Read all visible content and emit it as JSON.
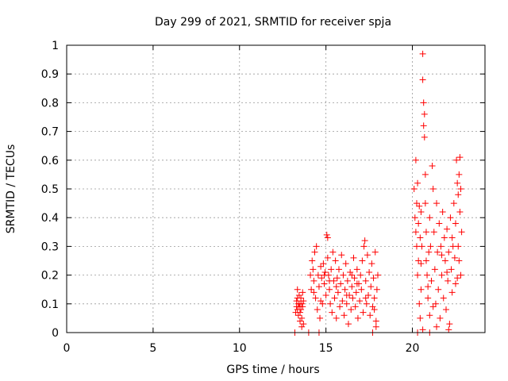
{
  "chart_data": {
    "type": "scatter",
    "title": "Day 299 of 2021, SRMTID for receiver spja",
    "xlabel": "GPS time / hours",
    "ylabel": "SRMTID / TECUs",
    "xlim": [
      0,
      24.2
    ],
    "ylim": [
      0,
      1
    ],
    "xticks": [
      0,
      5,
      10,
      15,
      20
    ],
    "yticks": [
      0,
      0.1,
      0.2,
      0.3,
      0.4,
      0.5,
      0.6,
      0.7,
      0.8,
      0.9,
      1
    ],
    "grid": true,
    "marker": "+",
    "color": "#ff0000",
    "series": [
      {
        "name": "spja",
        "points": [
          [
            13.2,
            0.0
          ],
          [
            14.0,
            0.0
          ],
          [
            14.6,
            0.0
          ],
          [
            13.25,
            0.07
          ],
          [
            13.3,
            0.09
          ],
          [
            13.3,
            0.11
          ],
          [
            13.35,
            0.08
          ],
          [
            13.35,
            0.12
          ],
          [
            13.4,
            0.1
          ],
          [
            13.4,
            0.06
          ],
          [
            13.45,
            0.09
          ],
          [
            13.45,
            0.13
          ],
          [
            13.5,
            0.1
          ],
          [
            13.5,
            0.07
          ],
          [
            13.55,
            0.12
          ],
          [
            13.55,
            0.08
          ],
          [
            13.6,
            0.1
          ],
          [
            13.6,
            0.05
          ],
          [
            13.65,
            0.09
          ],
          [
            13.65,
            0.14
          ],
          [
            13.7,
            0.11
          ],
          [
            13.7,
            0.03
          ],
          [
            13.35,
            0.15
          ],
          [
            13.5,
            0.04
          ],
          [
            13.6,
            0.02
          ],
          [
            14.1,
            0.2
          ],
          [
            14.15,
            0.15
          ],
          [
            14.2,
            0.25
          ],
          [
            14.25,
            0.22
          ],
          [
            14.3,
            0.18
          ],
          [
            14.35,
            0.28
          ],
          [
            14.4,
            0.12
          ],
          [
            14.45,
            0.3
          ],
          [
            14.5,
            0.08
          ],
          [
            14.55,
            0.2
          ],
          [
            14.6,
            0.16
          ],
          [
            14.65,
            0.05
          ],
          [
            14.7,
            0.23
          ],
          [
            14.75,
            0.19
          ],
          [
            14.8,
            0.1
          ],
          [
            14.85,
            0.24
          ],
          [
            14.9,
            0.17
          ],
          [
            14.95,
            0.21
          ],
          [
            15.0,
            0.13
          ],
          [
            15.05,
            0.34
          ],
          [
            15.1,
            0.33
          ],
          [
            15.1,
            0.26
          ],
          [
            15.15,
            0.2
          ],
          [
            15.2,
            0.15
          ],
          [
            15.25,
            0.1
          ],
          [
            15.3,
            0.22
          ],
          [
            15.35,
            0.07
          ],
          [
            15.4,
            0.28
          ],
          [
            15.45,
            0.18
          ],
          [
            15.5,
            0.12
          ],
          [
            15.55,
            0.25
          ],
          [
            15.6,
            0.05
          ],
          [
            15.65,
            0.19
          ],
          [
            15.7,
            0.14
          ],
          [
            15.75,
            0.22
          ],
          [
            15.8,
            0.09
          ],
          [
            15.85,
            0.17
          ],
          [
            15.9,
            0.27
          ],
          [
            15.95,
            0.11
          ],
          [
            16.0,
            0.2
          ],
          [
            16.05,
            0.06
          ],
          [
            16.1,
            0.15
          ],
          [
            16.15,
            0.24
          ],
          [
            16.2,
            0.1
          ],
          [
            16.25,
            0.18
          ],
          [
            16.3,
            0.03
          ],
          [
            16.35,
            0.13
          ],
          [
            16.4,
            0.21
          ],
          [
            16.45,
            0.08
          ],
          [
            16.5,
            0.16
          ],
          [
            16.55,
            0.12
          ],
          [
            16.6,
            0.26
          ],
          [
            16.65,
            0.19
          ],
          [
            16.7,
            0.09
          ],
          [
            16.75,
            0.14
          ],
          [
            16.8,
            0.22
          ],
          [
            16.85,
            0.05
          ],
          [
            16.9,
            0.17
          ],
          [
            16.95,
            0.11
          ],
          [
            17.0,
            0.2
          ],
          [
            17.05,
            0.15
          ],
          [
            17.1,
            0.25
          ],
          [
            17.15,
            0.07
          ],
          [
            17.2,
            0.3
          ],
          [
            17.25,
            0.32
          ],
          [
            17.3,
            0.18
          ],
          [
            17.35,
            0.1
          ],
          [
            17.4,
            0.27
          ],
          [
            17.45,
            0.13
          ],
          [
            17.5,
            0.21
          ],
          [
            17.55,
            0.06
          ],
          [
            17.6,
            0.16
          ],
          [
            17.65,
            0.24
          ],
          [
            17.7,
            0.09
          ],
          [
            17.75,
            0.19
          ],
          [
            17.8,
            0.12
          ],
          [
            17.85,
            0.28
          ],
          [
            17.9,
            0.04
          ],
          [
            17.95,
            0.15
          ],
          [
            18.0,
            0.2
          ],
          [
            17.7,
            0.0
          ],
          [
            17.9,
            0.02
          ],
          [
            14.3,
            0.14
          ],
          [
            14.9,
            0.2
          ],
          [
            15.6,
            0.16
          ],
          [
            16.2,
            0.13
          ],
          [
            16.8,
            0.17
          ],
          [
            17.3,
            0.12
          ],
          [
            15.2,
            0.18
          ],
          [
            16.5,
            0.2
          ],
          [
            14.7,
            0.11
          ],
          [
            17.8,
            0.08
          ],
          [
            20.1,
            0.5
          ],
          [
            20.15,
            0.4
          ],
          [
            20.2,
            0.6
          ],
          [
            20.2,
            0.35
          ],
          [
            20.25,
            0.45
          ],
          [
            20.25,
            0.3
          ],
          [
            20.3,
            0.52
          ],
          [
            20.3,
            0.2
          ],
          [
            20.35,
            0.38
          ],
          [
            20.35,
            0.25
          ],
          [
            20.4,
            0.44
          ],
          [
            20.4,
            0.1
          ],
          [
            20.45,
            0.33
          ],
          [
            20.45,
            0.05
          ],
          [
            20.5,
            0.42
          ],
          [
            20.5,
            0.15
          ],
          [
            20.55,
            0.3
          ],
          [
            20.6,
            0.97
          ],
          [
            20.6,
            0.88
          ],
          [
            20.65,
            0.8
          ],
          [
            20.65,
            0.72
          ],
          [
            20.7,
            0.76
          ],
          [
            20.7,
            0.68
          ],
          [
            20.75,
            0.55
          ],
          [
            20.75,
            0.45
          ],
          [
            20.8,
            0.35
          ],
          [
            20.8,
            0.25
          ],
          [
            20.85,
            0.2
          ],
          [
            20.9,
            0.12
          ],
          [
            20.95,
            0.28
          ],
          [
            21.0,
            0.4
          ],
          [
            21.0,
            0.06
          ],
          [
            21.05,
            0.3
          ],
          [
            21.1,
            0.18
          ],
          [
            21.15,
            0.58
          ],
          [
            21.2,
            0.5
          ],
          [
            21.25,
            0.35
          ],
          [
            21.3,
            0.22
          ],
          [
            21.35,
            0.1
          ],
          [
            21.4,
            0.45
          ],
          [
            21.45,
            0.28
          ],
          [
            21.5,
            0.15
          ],
          [
            21.55,
            0.38
          ],
          [
            21.6,
            0.05
          ],
          [
            21.65,
            0.3
          ],
          [
            21.7,
            0.2
          ],
          [
            21.75,
            0.42
          ],
          [
            21.8,
            0.12
          ],
          [
            21.85,
            0.33
          ],
          [
            21.9,
            0.25
          ],
          [
            21.95,
            0.08
          ],
          [
            22.0,
            0.36
          ],
          [
            22.05,
            0.18
          ],
          [
            22.1,
            0.28
          ],
          [
            22.15,
            0.03
          ],
          [
            22.2,
            0.4
          ],
          [
            22.25,
            0.22
          ],
          [
            22.3,
            0.14
          ],
          [
            22.35,
            0.3
          ],
          [
            22.4,
            0.45
          ],
          [
            22.45,
            0.26
          ],
          [
            22.5,
            0.38
          ],
          [
            22.55,
            0.6
          ],
          [
            22.6,
            0.52
          ],
          [
            22.6,
            0.19
          ],
          [
            22.65,
            0.48
          ],
          [
            22.65,
            0.3
          ],
          [
            22.7,
            0.55
          ],
          [
            22.7,
            0.25
          ],
          [
            22.75,
            0.61
          ],
          [
            22.75,
            0.42
          ],
          [
            22.8,
            0.5
          ],
          [
            22.8,
            0.2
          ],
          [
            22.85,
            0.35
          ],
          [
            20.3,
            0.0
          ],
          [
            20.6,
            0.01
          ],
          [
            21.0,
            0.0
          ],
          [
            21.4,
            0.02
          ],
          [
            22.1,
            0.01
          ],
          [
            20.9,
            0.16
          ],
          [
            21.7,
            0.27
          ],
          [
            22.3,
            0.33
          ],
          [
            20.5,
            0.24
          ],
          [
            21.2,
            0.09
          ],
          [
            22.0,
            0.21
          ],
          [
            22.5,
            0.17
          ]
        ]
      }
    ]
  }
}
